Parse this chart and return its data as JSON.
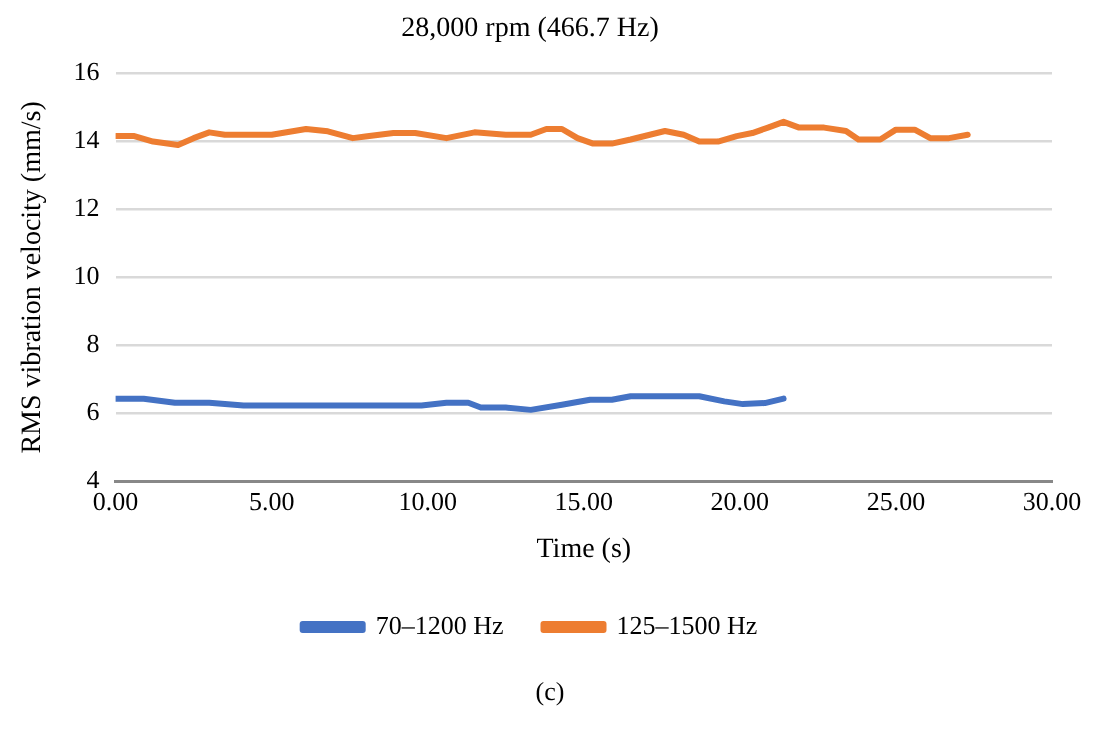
{
  "chart_data": {
    "type": "line",
    "title": "28,000 rpm (466.7 Hz)",
    "xlabel": "Time (s)",
    "ylabel": "RMS vibration velocity (mm/s)",
    "annotations": [
      "(c)"
    ],
    "xlim": [
      0,
      30
    ],
    "xticks": [
      {
        "value": 0,
        "label": "0.00"
      },
      {
        "value": 5,
        "label": "5.00"
      },
      {
        "value": 10,
        "label": "10.00"
      },
      {
        "value": 15,
        "label": "15.00"
      },
      {
        "value": 20,
        "label": "20.00"
      },
      {
        "value": 25,
        "label": "25.00"
      },
      {
        "value": 30,
        "label": "30.00"
      }
    ],
    "ylim": [
      4,
      16
    ],
    "yticks": [
      4,
      6,
      8,
      10,
      12,
      14,
      16
    ],
    "grid": "y",
    "legend": "bottom",
    "marker": "none",
    "line_style": "solid",
    "series": [
      {
        "name": "70–1200 Hz",
        "color": "#4472c4",
        "x": [
          0,
          0.9,
          1.9,
          3.0,
          4.1,
          6.1,
          8.0,
          9.8,
          10.6,
          11.3,
          11.7,
          12.5,
          13.3,
          14.3,
          15.2,
          15.9,
          16.5,
          17.6,
          18.7,
          19.5,
          20.1,
          20.8,
          21.4
        ],
        "values": [
          6.43,
          6.43,
          6.31,
          6.31,
          6.23,
          6.23,
          6.23,
          6.23,
          6.31,
          6.31,
          6.17,
          6.17,
          6.1,
          6.25,
          6.4,
          6.4,
          6.5,
          6.5,
          6.5,
          6.35,
          6.27,
          6.3,
          6.43
        ]
      },
      {
        "name": "125–1500 Hz",
        "color": "#ed7d31",
        "x": [
          0,
          0.6,
          1.2,
          2.0,
          2.5,
          3.0,
          3.5,
          5.0,
          6.1,
          6.8,
          7.6,
          8.0,
          8.9,
          9.6,
          10.6,
          11.5,
          12.5,
          13.3,
          13.8,
          14.3,
          14.8,
          15.3,
          15.9,
          16.5,
          17.6,
          18.2,
          18.7,
          19.3,
          19.9,
          20.4,
          20.9,
          21.4,
          21.9,
          22.7,
          23.4,
          23.8,
          24.5,
          25.0,
          25.6,
          26.1,
          26.7,
          27.3
        ],
        "values": [
          14.16,
          14.16,
          14.0,
          13.9,
          14.1,
          14.27,
          14.2,
          14.2,
          14.37,
          14.3,
          14.1,
          14.15,
          14.25,
          14.25,
          14.1,
          14.27,
          14.2,
          14.2,
          14.37,
          14.37,
          14.1,
          13.94,
          13.94,
          14.06,
          14.31,
          14.2,
          14.0,
          14.0,
          14.16,
          14.25,
          14.41,
          14.58,
          14.41,
          14.41,
          14.31,
          14.06,
          14.06,
          14.35,
          14.35,
          14.1,
          14.1,
          14.2
        ]
      }
    ]
  }
}
